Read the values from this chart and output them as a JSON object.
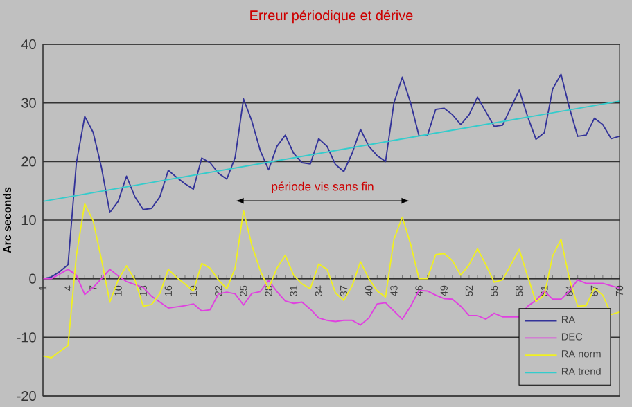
{
  "chart_data": {
    "type": "line",
    "title": "Erreur périodique et dérive",
    "ylabel": "Arc seconds",
    "x": [
      1,
      2,
      3,
      4,
      5,
      6,
      7,
      8,
      9,
      10,
      11,
      12,
      13,
      14,
      15,
      16,
      17,
      18,
      19,
      20,
      21,
      22,
      23,
      24,
      25,
      26,
      27,
      28,
      29,
      30,
      31,
      32,
      33,
      34,
      35,
      36,
      37,
      38,
      39,
      40,
      41,
      42,
      43,
      44,
      45,
      46,
      47,
      48,
      49,
      50,
      51,
      52,
      53,
      54,
      55,
      56,
      57,
      58,
      59,
      60,
      61,
      62,
      63,
      64,
      65,
      66,
      67,
      68,
      69,
      70
    ],
    "xlim": [
      1,
      70
    ],
    "xticks": [
      1,
      {
        "value": 2,
        "label": null
      },
      {
        "value": 3,
        "label": null
      },
      4,
      {
        "value": 5,
        "label": null
      },
      {
        "value": 6,
        "label": null
      },
      7,
      {
        "value": 8,
        "label": null
      },
      {
        "value": 9,
        "label": null
      },
      10,
      {
        "value": 11,
        "label": null
      },
      {
        "value": 12,
        "label": null
      },
      13,
      {
        "value": 14,
        "label": null
      },
      {
        "value": 15,
        "label": null
      },
      16,
      {
        "value": 17,
        "label": null
      },
      {
        "value": 18,
        "label": null
      },
      19,
      {
        "value": 20,
        "label": null
      },
      {
        "value": 21,
        "label": null
      },
      22,
      {
        "value": 23,
        "label": null
      },
      {
        "value": 24,
        "label": null
      },
      25,
      {
        "value": 26,
        "label": null
      },
      {
        "value": 27,
        "label": null
      },
      28,
      {
        "value": 29,
        "label": null
      },
      {
        "value": 30,
        "label": null
      },
      31,
      {
        "value": 32,
        "label": null
      },
      {
        "value": 33,
        "label": null
      },
      34,
      {
        "value": 35,
        "label": null
      },
      {
        "value": 36,
        "label": null
      },
      37,
      {
        "value": 38,
        "label": null
      },
      {
        "value": 39,
        "label": null
      },
      40,
      {
        "value": 41,
        "label": null
      },
      {
        "value": 42,
        "label": null
      },
      43,
      {
        "value": 44,
        "label": null
      },
      {
        "value": 45,
        "label": null
      },
      46,
      {
        "value": 47,
        "label": null
      },
      {
        "value": 48,
        "label": null
      },
      49,
      {
        "value": 50,
        "label": null
      },
      {
        "value": 51,
        "label": null
      },
      52,
      {
        "value": 53,
        "label": null
      },
      {
        "value": 54,
        "label": null
      },
      55,
      {
        "value": 56,
        "label": null
      },
      {
        "value": 57,
        "label": null
      },
      58,
      {
        "value": 59,
        "label": null
      },
      {
        "value": 60,
        "label": null
      },
      61,
      {
        "value": 62,
        "label": null
      },
      {
        "value": 63,
        "label": null
      },
      64,
      {
        "value": 65,
        "label": null
      },
      {
        "value": 66,
        "label": null
      },
      67,
      {
        "value": 68,
        "label": null
      },
      {
        "value": 69,
        "label": null
      },
      70
    ],
    "ylim": [
      -20,
      40
    ],
    "yticks": [
      -20,
      -10,
      0,
      10,
      20,
      30,
      40
    ],
    "grid": "y",
    "legend": "bottom right",
    "marker": "none",
    "series": [
      {
        "name": "RA",
        "color": "#333399",
        "values": [
          0,
          0.3,
          1.2,
          2.4,
          19.8,
          27.7,
          25,
          19,
          11.3,
          13.2,
          17.5,
          14,
          11.8,
          12,
          14,
          18.5,
          17.3,
          16.2,
          15.3,
          20.6,
          19.8,
          18,
          17,
          20.7,
          30.7,
          26.9,
          21.9,
          18.6,
          22.6,
          24.5,
          21.4,
          19.8,
          19.6,
          23.9,
          22.6,
          19.5,
          18.3,
          21.4,
          25.5,
          22.6,
          21,
          20,
          30,
          34.4,
          30,
          24.4,
          24.4,
          28.9,
          29.1,
          28,
          26.3,
          28,
          31,
          28.5,
          26,
          26.2,
          29.2,
          32.2,
          27.7,
          23.8,
          24.9,
          32.4,
          34.9,
          29.2,
          24.3,
          24.5,
          27.4,
          26.3,
          23.9,
          24.3
        ]
      },
      {
        "name": "DEC",
        "color": "#e040e0",
        "values": [
          0,
          0,
          0.8,
          1.6,
          0.6,
          -2.7,
          -1.5,
          0,
          1.6,
          0.5,
          -0.5,
          -1,
          -1.5,
          -3,
          -4,
          -5,
          -4.8,
          -4.6,
          -4.3,
          -5.5,
          -5.3,
          -2.6,
          -2.3,
          -2.6,
          -4.5,
          -2.5,
          -2.2,
          -0.3,
          -2.2,
          -3.8,
          -4.2,
          -4,
          -5.2,
          -6.7,
          -7.1,
          -7.3,
          -7.1,
          -7.1,
          -7.9,
          -6.7,
          -4.3,
          -4.1,
          -5.5,
          -6.9,
          -4.7,
          -2,
          -2.1,
          -2.8,
          -3.4,
          -3.5,
          -4.7,
          -6.3,
          -6.3,
          -6.9,
          -5.9,
          -6.5,
          -6.5,
          -6.5,
          -4.7,
          -3.7,
          -2.1,
          -3.5,
          -3.5,
          -2.1,
          -0.2,
          -0.8,
          -0.8,
          -0.8,
          -1.2,
          -1.6
        ]
      },
      {
        "name": "RA norm",
        "color": "#f0f020",
        "values": [
          -13.2,
          -13.5,
          -12.4,
          -11.4,
          4,
          12.8,
          9.9,
          3.3,
          -4,
          -0.2,
          2.2,
          -0.2,
          -4.7,
          -4.4,
          -2.5,
          1.6,
          0.2,
          -0.9,
          -2.1,
          2.6,
          1.8,
          -0.2,
          -1.7,
          1.8,
          11.6,
          5.7,
          1.4,
          -1.7,
          1.8,
          4,
          0.6,
          -0.9,
          -1.7,
          2.5,
          1.6,
          -2.4,
          -3.7,
          -1.2,
          2.9,
          0,
          -2.1,
          -3.1,
          6.7,
          10.5,
          5.9,
          0,
          0,
          4.1,
          4.3,
          3.1,
          0.6,
          2.4,
          5.1,
          2.4,
          -0.6,
          -0.2,
          2.4,
          5,
          0.4,
          -3.9,
          -2.8,
          3.9,
          6.7,
          0,
          -4.7,
          -4.6,
          -1.6,
          -2.8,
          -6.1,
          -5.7
        ]
      },
      {
        "name": "RA trend",
        "color": "#33cccc",
        "x": [
          1,
          70
        ],
        "values": [
          13.2,
          30.3
        ]
      }
    ],
    "annotations": [
      "période vis sans fin"
    ]
  }
}
